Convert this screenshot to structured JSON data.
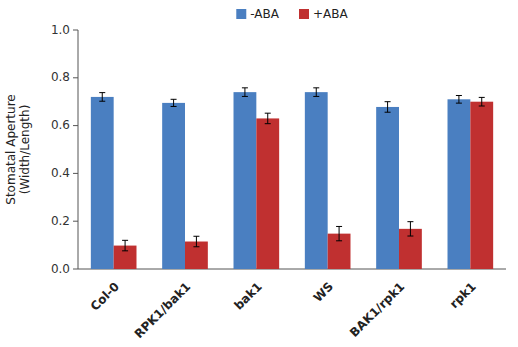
{
  "chart_data": {
    "type": "bar",
    "categories": [
      "Col-0",
      "RPK1/bak1",
      "bak1",
      "WS",
      "BAK1/rpk1",
      "rpk1"
    ],
    "series": [
      {
        "name": "-ABA",
        "color": "#4A7FC1",
        "values": [
          0.72,
          0.695,
          0.74,
          0.74,
          0.678,
          0.71
        ],
        "errors": [
          0.018,
          0.015,
          0.018,
          0.018,
          0.022,
          0.016
        ]
      },
      {
        "name": "+ABA",
        "color": "#C03030",
        "values": [
          0.098,
          0.115,
          0.63,
          0.148,
          0.168,
          0.7
        ],
        "errors": [
          0.022,
          0.022,
          0.022,
          0.03,
          0.03,
          0.018
        ]
      }
    ],
    "ylabel": "Stomatal Aperture\n(Width/Length)",
    "ylim": [
      0,
      1.0
    ],
    "yticks": [
      {
        "value": 0,
        "label": "0.0"
      },
      0.2,
      0.4,
      0.6,
      0.8,
      {
        "value": 1.0,
        "label": "1.0"
      }
    ],
    "legend": "upper center"
  }
}
